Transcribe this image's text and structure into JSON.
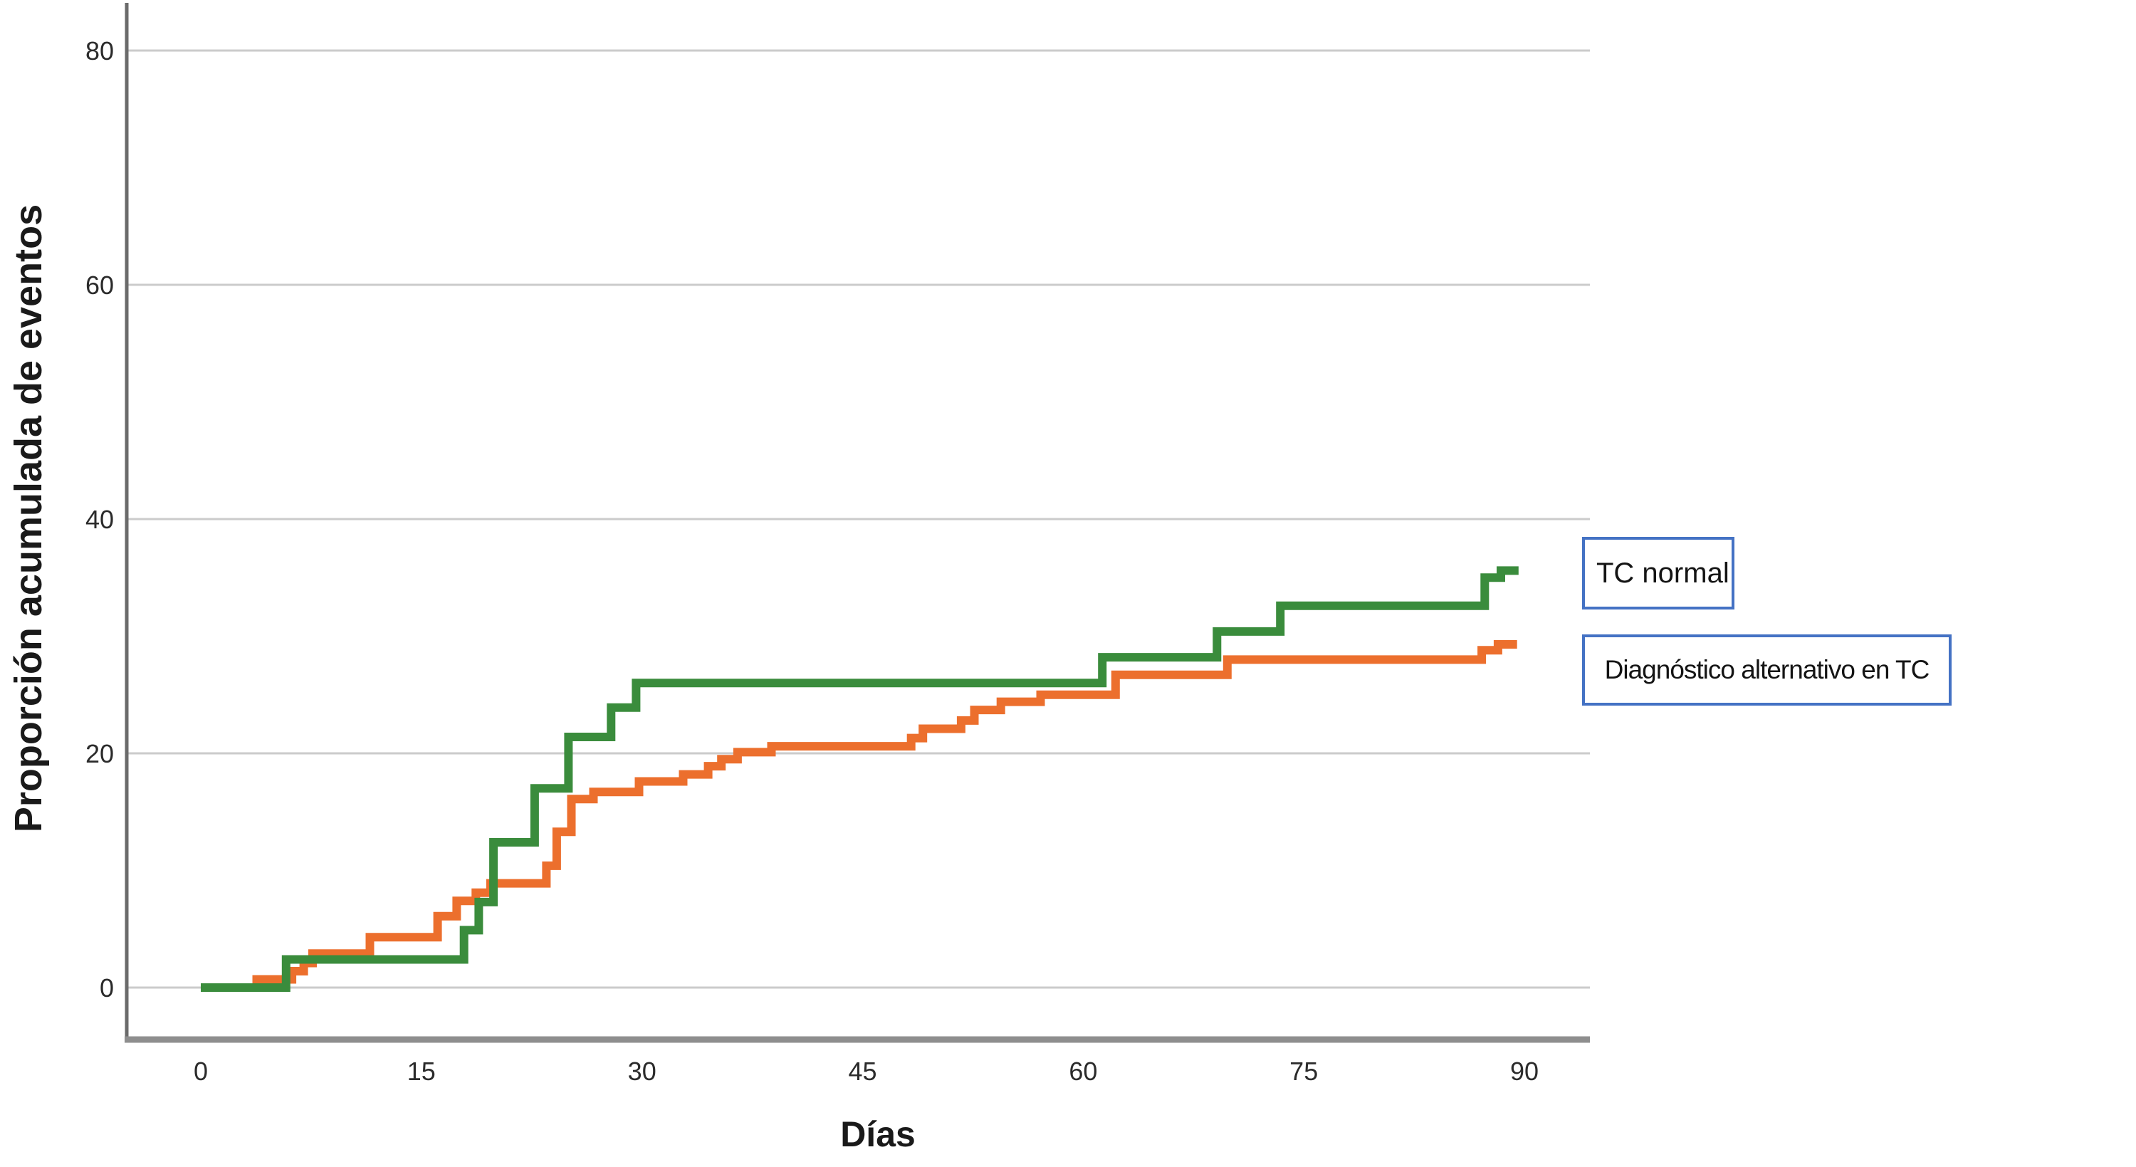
{
  "colors": {
    "gridline": "#cbcbcb",
    "axis_line": "#6b6b6b",
    "bottom_border": "#8e8e8e",
    "tick_text": "#2b2b2b",
    "title_text": "#1a1a1a",
    "legend_border": "#4472c4",
    "green_series": "#3a8c3c",
    "orange_series": "#ec6f2d"
  },
  "legend": {
    "items": [
      {
        "label": "TC normal"
      },
      {
        "label": "Diagnóstico alternativo en TC"
      }
    ]
  },
  "chart_data": {
    "type": "line",
    "subtype": "step-cumulative-incidence",
    "title": "",
    "xlabel": "Días",
    "ylabel": "Proporción acumulada de eventos",
    "xlim": [
      0,
      93
    ],
    "ylim": [
      0,
      85
    ],
    "xticks": [
      0,
      15,
      30,
      45,
      60,
      75,
      90
    ],
    "yticks": [
      0,
      20,
      40,
      60,
      80
    ],
    "grid": "horizontal",
    "legend_position": "right-outside",
    "series": [
      {
        "name": "TC normal",
        "color": "#3a8c3c",
        "end_day": 89.6,
        "points": [
          [
            0,
            0
          ],
          [
            5.8,
            2.4
          ],
          [
            17.9,
            4.9
          ],
          [
            18.9,
            7.3
          ],
          [
            19.9,
            12.4
          ],
          [
            22.7,
            17.0
          ],
          [
            25.0,
            21.4
          ],
          [
            27.9,
            23.9
          ],
          [
            29.6,
            26.0
          ],
          [
            61.3,
            28.2
          ],
          [
            69.1,
            30.4
          ],
          [
            73.4,
            32.6
          ],
          [
            87.3,
            35.0
          ],
          [
            88.4,
            35.6
          ]
        ]
      },
      {
        "name": "Diagnóstico alternativo en TC",
        "color": "#ec6f2d",
        "end_day": 89.5,
        "points": [
          [
            0,
            0
          ],
          [
            3.8,
            0.7
          ],
          [
            6.2,
            1.4
          ],
          [
            7.0,
            2.1
          ],
          [
            7.6,
            2.9
          ],
          [
            11.5,
            4.3
          ],
          [
            16.1,
            6.1
          ],
          [
            17.4,
            7.4
          ],
          [
            18.7,
            8.1
          ],
          [
            19.7,
            8.9
          ],
          [
            23.5,
            10.4
          ],
          [
            24.2,
            13.3
          ],
          [
            25.2,
            16.1
          ],
          [
            26.7,
            16.7
          ],
          [
            29.8,
            17.6
          ],
          [
            32.8,
            18.2
          ],
          [
            34.5,
            18.9
          ],
          [
            35.4,
            19.5
          ],
          [
            36.5,
            20.1
          ],
          [
            38.8,
            20.6
          ],
          [
            48.3,
            21.3
          ],
          [
            49.1,
            22.1
          ],
          [
            51.7,
            22.8
          ],
          [
            52.6,
            23.7
          ],
          [
            54.4,
            24.4
          ],
          [
            57.1,
            25.0
          ],
          [
            62.2,
            26.7
          ],
          [
            69.8,
            28.0
          ],
          [
            87.1,
            28.8
          ],
          [
            88.2,
            29.3
          ]
        ]
      }
    ]
  }
}
